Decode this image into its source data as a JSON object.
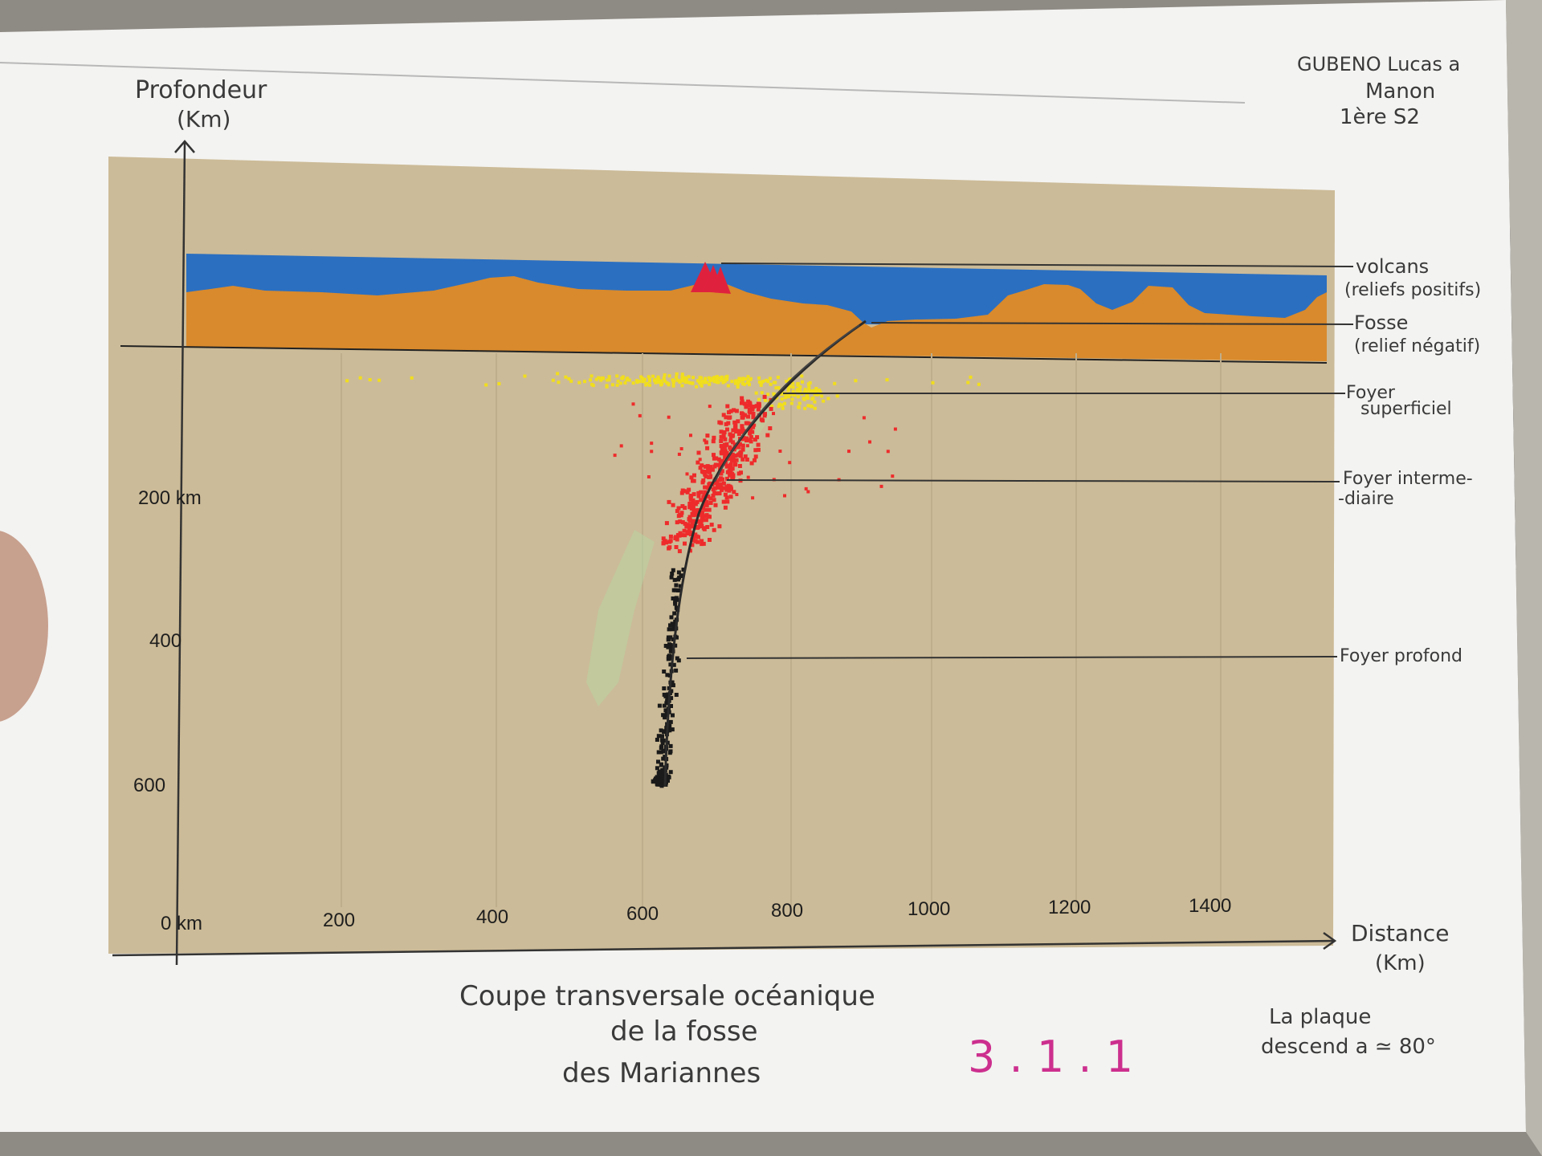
{
  "author_note": [
    "GUBENO Lucas a",
    "Manon",
    "1ère S2"
  ],
  "y_axis": {
    "label_line1": "Profondeur",
    "label_line2": "(Km)",
    "ticks": [
      "200 km",
      "400",
      "600"
    ]
  },
  "x_axis": {
    "label_line1": "Distance",
    "label_line2": "(Km)",
    "ticks": [
      "0 km",
      "200",
      "400",
      "600",
      "800",
      "1000",
      "1200",
      "1400"
    ]
  },
  "annotations": {
    "volcans": [
      "volcans",
      "(reliefs positifs)"
    ],
    "fosse": [
      "Fosse",
      "(relief négatif)"
    ],
    "foyer_superficiel": [
      "Foyer",
      "superficiel"
    ],
    "foyer_intermediaire": [
      "Foyer interme-",
      "-diaire"
    ],
    "foyer_profond": [
      "Foyer profond"
    ]
  },
  "caption": [
    "Coupe transversale océanique",
    "de la fosse",
    "des Mariannes"
  ],
  "page_number": "3 . 1 . 1",
  "side_note": [
    "La plaque",
    "descend a ≃ 80°"
  ],
  "colors": {
    "paper": "#f2f2f0",
    "panel": "#ccbb98",
    "ocean": "#2b6fc0",
    "crust": "#d98a2c",
    "volcano": "#e0213e",
    "superficial_foci": "#f1de1c",
    "intermediate_foci": "#ee2b2b",
    "deep_foci": "#1a1a1a",
    "ink": "#3a3a3a",
    "page_number": "#cc2f8e"
  }
}
